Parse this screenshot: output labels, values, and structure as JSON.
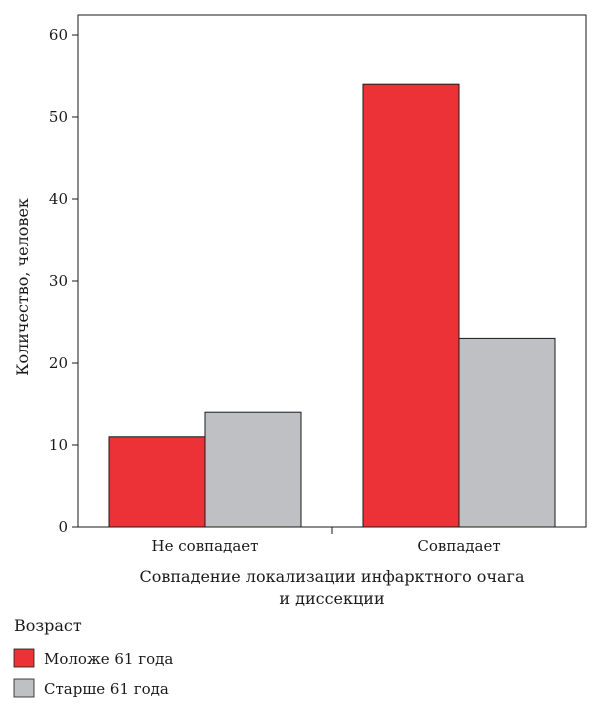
{
  "chart_data": {
    "type": "bar",
    "categories": [
      "Не совпадает",
      "Совпадает"
    ],
    "series": [
      {
        "name": "Моложе 61 года",
        "values": [
          11,
          54
        ],
        "color": "#ed3237"
      },
      {
        "name": "Старше 61 года",
        "values": [
          14,
          23
        ],
        "color": "#bfc0c4"
      }
    ],
    "xlabel": [
      "Совпадение локализации инфарктного очага",
      "и диссекции"
    ],
    "ylabel": "Количество, человек",
    "ylim": [
      0,
      60
    ],
    "yticks": [
      0,
      10,
      20,
      30,
      40,
      50,
      60
    ],
    "grid": false,
    "legend": {
      "title": "Возраст",
      "placement": "bottom-left"
    }
  }
}
